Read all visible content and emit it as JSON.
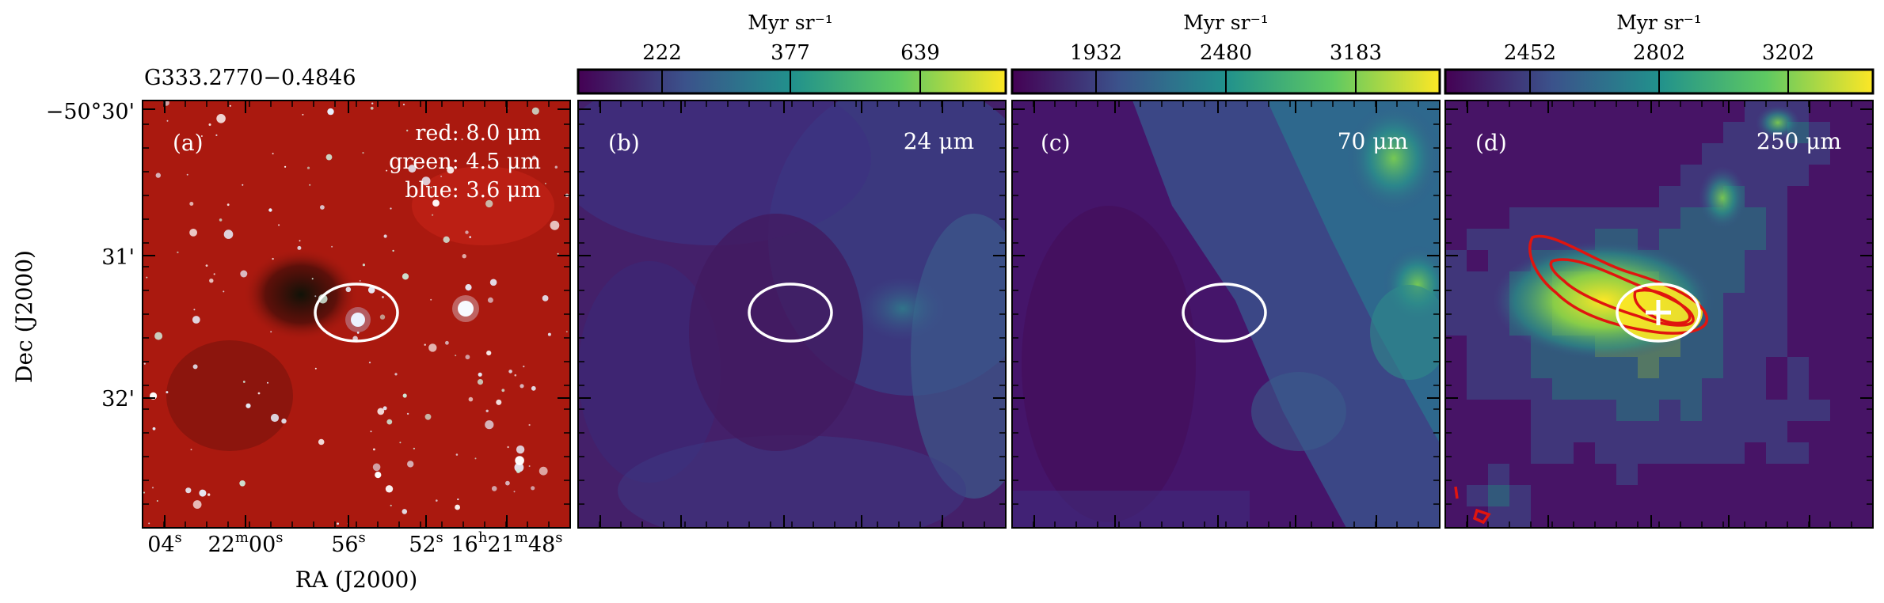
{
  "figure": {
    "source_name": "G333.2770−0.4846",
    "y_axis_label": "Dec (J2000)",
    "x_axis_label": "RA (J2000)",
    "dec_ticks": [
      "−50°30'",
      "31'",
      "32'"
    ],
    "ra_ticks": [
      {
        "main": "04",
        "sup": "s"
      },
      {
        "main": "22",
        "sup": "m",
        "main2": "00",
        "sup2": "s"
      },
      {
        "main": "56",
        "sup": "s"
      },
      {
        "main": "52",
        "sup": "s"
      },
      {
        "main": "16",
        "sup": "h",
        "main2": "21",
        "sup2": "m",
        "main3": "48",
        "sup3": "s"
      }
    ]
  },
  "panels": [
    {
      "letter": "(a)",
      "label_lines": [
        "red: 8.0 μm",
        "green: 4.5 μm",
        "blue: 3.6 μm"
      ],
      "colorbar": null
    },
    {
      "letter": "(b)",
      "label_lines": [
        "24 μm"
      ],
      "colorbar": {
        "unit": "Myr sr⁻¹",
        "ticks": [
          "222",
          "377",
          "639"
        ]
      }
    },
    {
      "letter": "(c)",
      "label_lines": [
        "70 μm"
      ],
      "colorbar": {
        "unit": "Myr sr⁻¹",
        "ticks": [
          "1932",
          "2480",
          "3183"
        ]
      }
    },
    {
      "letter": "(d)",
      "label_lines": [
        "250 μm"
      ],
      "colorbar": {
        "unit": "Myr sr⁻¹",
        "ticks": [
          "2452",
          "2802",
          "3202"
        ]
      }
    }
  ],
  "colors": {
    "viridis": [
      "#440154",
      "#3b528b",
      "#21918c",
      "#5ec962",
      "#fde725"
    ],
    "rgb_bg": "#b81d12",
    "ellipse": "#ffffff",
    "contour": "#e0150f",
    "marker": "#ffffff"
  }
}
